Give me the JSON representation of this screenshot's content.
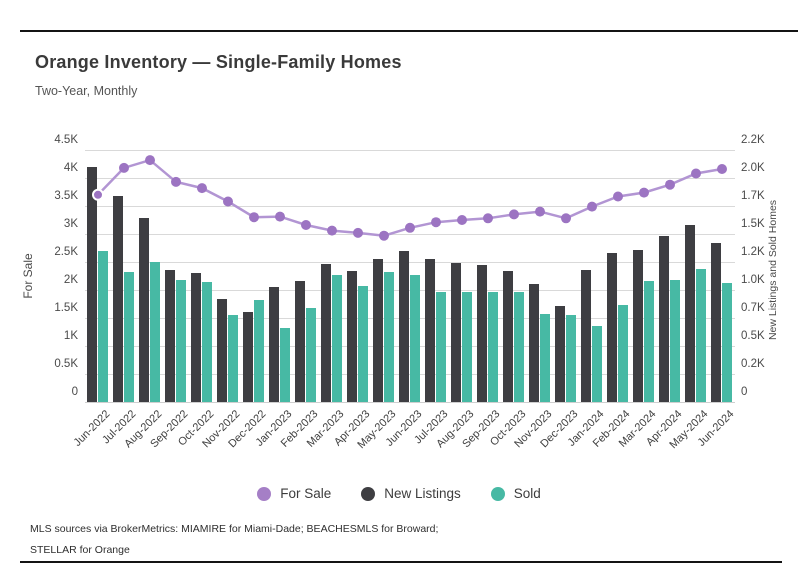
{
  "chart_data": {
    "type": "combo",
    "title": "Orange Inventory — Single-Family Homes",
    "subtitle": "Two-Year, Monthly",
    "units": "thousands (K)",
    "grid": true,
    "legend_position": "bottom",
    "categories": [
      "Jun-2022",
      "Jul-2022",
      "Aug-2022",
      "Sep-2022",
      "Oct-2022",
      "Nov-2022",
      "Dec-2022",
      "Jan-2023",
      "Feb-2023",
      "Mar-2023",
      "Apr-2023",
      "May-2023",
      "Jun-2023",
      "Jul-2023",
      "Aug-2023",
      "Sep-2023",
      "Oct-2023",
      "Nov-2023",
      "Dec-2023",
      "Jan-2024",
      "Feb-2024",
      "Mar-2024",
      "Apr-2024",
      "May-2024",
      "Jun-2024"
    ],
    "series": [
      {
        "name": "For Sale",
        "type": "line",
        "axis": "left",
        "values": [
          3.7,
          4.18,
          4.32,
          3.93,
          3.82,
          3.58,
          3.3,
          3.31,
          3.16,
          3.06,
          3.02,
          2.97,
          3.11,
          3.21,
          3.25,
          3.28,
          3.35,
          3.4,
          3.28,
          3.49,
          3.67,
          3.74,
          3.88,
          4.08,
          4.16
        ]
      },
      {
        "name": "New Listings",
        "type": "bar",
        "axis": "right",
        "values": [
          2.1,
          1.84,
          1.64,
          1.18,
          1.15,
          0.92,
          0.8,
          1.03,
          1.08,
          1.23,
          1.17,
          1.28,
          1.35,
          1.28,
          1.24,
          1.22,
          1.17,
          1.05,
          0.86,
          1.18,
          1.33,
          1.36,
          1.48,
          1.58,
          1.42
        ]
      },
      {
        "name": "Sold",
        "type": "bar",
        "axis": "right",
        "values": [
          1.35,
          1.16,
          1.25,
          1.09,
          1.07,
          0.78,
          0.91,
          0.66,
          0.84,
          1.13,
          1.04,
          1.16,
          1.13,
          0.98,
          0.98,
          0.98,
          0.98,
          0.79,
          0.78,
          0.68,
          0.87,
          1.08,
          1.09,
          1.19,
          1.06
        ]
      }
    ],
    "left_axis": {
      "label": "For Sale",
      "max": 4.5,
      "ticks": [
        "4.5K",
        "4K",
        "3.5K",
        "3K",
        "2.5K",
        "2K",
        "1.5K",
        "1K",
        "0.5K",
        "0"
      ]
    },
    "right_axis": {
      "label": "New Listings and Sold Homes",
      "max": 2.25,
      "ticks": [
        "2.2K",
        "2.0K",
        "1.7K",
        "1.5K",
        "1.2K",
        "1.0K",
        "0.7K",
        "0.5K",
        "0.2K",
        "0"
      ]
    },
    "legend": [
      {
        "label": "For Sale",
        "color": "#a57fc6"
      },
      {
        "label": "New Listings",
        "color": "#3e3e42"
      },
      {
        "label": "Sold",
        "color": "#47b9a4"
      }
    ],
    "colors": {
      "for_sale_dot": "#9c74c2",
      "for_sale_line": "#b295d3",
      "new_listings": "#3e3e42",
      "sold": "#47b9a4",
      "gridline": "#d9d9d9"
    }
  },
  "footer": {
    "line1": "MLS sources via BrokerMetrics: MIAMIRE for Miami-Dade; BEACHESMLS for Broward;",
    "line2": "STELLAR for Orange"
  }
}
